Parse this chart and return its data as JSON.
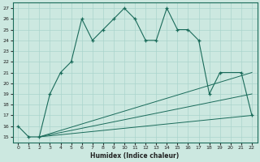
{
  "xlabel": "Humidex (Indice chaleur)",
  "background_color": "#cce8e0",
  "line_color": "#1a6b5a",
  "grid_color": "#aad4cc",
  "xlim": [
    -0.5,
    22.5
  ],
  "ylim": [
    14.5,
    27.5
  ],
  "xticks": [
    0,
    1,
    2,
    3,
    4,
    5,
    6,
    7,
    8,
    9,
    10,
    11,
    12,
    13,
    14,
    15,
    16,
    17,
    18,
    19,
    20,
    21,
    22
  ],
  "yticks": [
    15,
    16,
    17,
    18,
    19,
    20,
    21,
    22,
    23,
    24,
    25,
    26,
    27
  ],
  "series": [
    {
      "x": [
        0,
        1,
        2,
        3,
        4,
        5,
        6,
        7,
        8,
        9,
        10,
        11,
        12,
        13,
        14,
        15,
        16,
        17,
        18,
        19,
        21,
        22
      ],
      "y": [
        16,
        15,
        15,
        19,
        21,
        22,
        26,
        24,
        25,
        26,
        27,
        26,
        24,
        24,
        27,
        25,
        25,
        24,
        19,
        21,
        21,
        17
      ],
      "marker": true
    },
    {
      "x": [
        2,
        22
      ],
      "y": [
        15,
        21
      ],
      "marker": false
    },
    {
      "x": [
        2,
        22
      ],
      "y": [
        15,
        19
      ],
      "marker": false
    },
    {
      "x": [
        2,
        22
      ],
      "y": [
        15,
        17
      ],
      "marker": false
    }
  ]
}
